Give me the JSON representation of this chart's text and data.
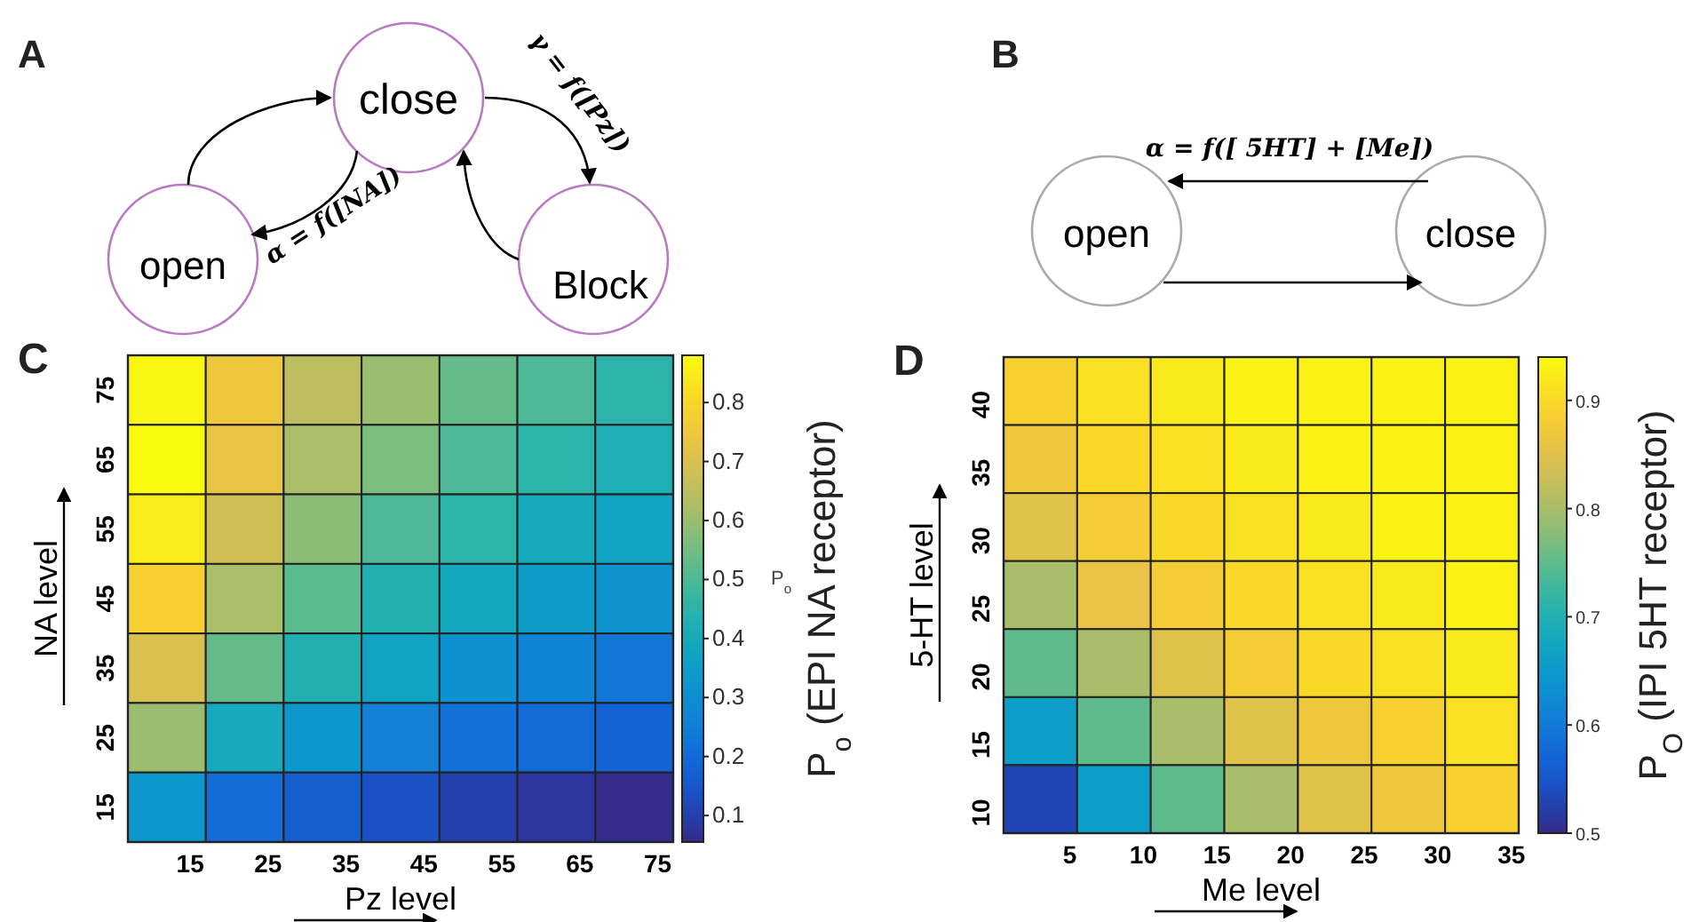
{
  "chart_data": [
    {
      "type": "other",
      "title": "A",
      "annotations": [
        "close",
        "open",
        "Block",
        "α = f([NA])",
        "γ = f([Pz])"
      ]
    },
    {
      "type": "other",
      "title": "B",
      "annotations": [
        "open",
        "close",
        "α = f([ 5HT] + [Me])"
      ]
    },
    {
      "type": "heatmap",
      "title": "C",
      "xlabel": "Pz level",
      "ylabel": "NA level",
      "clabel": "P$_{o}$ (EPI NA receptor)",
      "annotations": [
        "P$_{o}$"
      ],
      "categories": [
        "15",
        "25",
        "35",
        "45",
        "55",
        "65",
        "75"
      ],
      "y_categories": [
        "75",
        "65",
        "55",
        "45",
        "35",
        "25",
        "15"
      ],
      "cells": [
        [
          0.87,
          0.75,
          0.65,
          0.6,
          0.53,
          0.5,
          0.45
        ],
        [
          0.88,
          0.73,
          0.62,
          0.56,
          0.5,
          0.45,
          0.42
        ],
        [
          0.85,
          0.68,
          0.58,
          0.5,
          0.45,
          0.4,
          0.37
        ],
        [
          0.78,
          0.62,
          0.52,
          0.43,
          0.39,
          0.35,
          0.32
        ],
        [
          0.7,
          0.53,
          0.43,
          0.37,
          0.31,
          0.27,
          0.23
        ],
        [
          0.6,
          0.4,
          0.33,
          0.26,
          0.22,
          0.2,
          0.18
        ],
        [
          0.33,
          0.2,
          0.17,
          0.14,
          0.1,
          0.08,
          0.06
        ]
      ],
      "clim": [
        0.055,
        0.88
      ],
      "cticks": [
        0.1,
        0.2,
        0.3,
        0.4,
        0.5,
        0.6,
        0.7,
        0.8
      ]
    },
    {
      "type": "heatmap",
      "title": "D",
      "xlabel": "Me level",
      "ylabel": "5-HT level",
      "clabel": "P$_{O}$ (IPI 5HT receptor)",
      "categories": [
        "5",
        "10",
        "15",
        "20",
        "25",
        "30",
        "35"
      ],
      "y_categories": [
        "40",
        "35",
        "30",
        "25",
        "20",
        "15",
        "10"
      ],
      "cells": [
        [
          0.89,
          0.91,
          0.92,
          0.93,
          0.93,
          0.93,
          0.93
        ],
        [
          0.87,
          0.9,
          0.91,
          0.92,
          0.93,
          0.93,
          0.93
        ],
        [
          0.85,
          0.88,
          0.9,
          0.91,
          0.92,
          0.93,
          0.93
        ],
        [
          0.8,
          0.86,
          0.88,
          0.9,
          0.91,
          0.92,
          0.93
        ],
        [
          0.75,
          0.8,
          0.85,
          0.88,
          0.9,
          0.91,
          0.92
        ],
        [
          0.66,
          0.75,
          0.8,
          0.85,
          0.87,
          0.89,
          0.91
        ],
        [
          0.53,
          0.66,
          0.75,
          0.8,
          0.85,
          0.87,
          0.89
        ]
      ],
      "clim": [
        0.5,
        0.94
      ],
      "cticks": [
        0.5,
        0.6,
        0.7,
        0.8,
        0.9
      ]
    }
  ]
}
